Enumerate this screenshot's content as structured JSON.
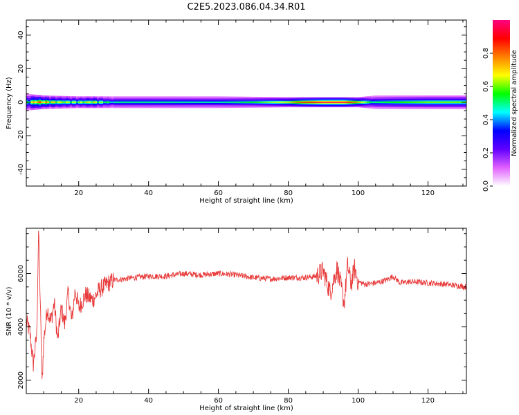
{
  "figure": {
    "title": "C2E5.2023.086.04.34.R01"
  },
  "chart_data": [
    {
      "type": "heatmap",
      "title": "",
      "xlabel": "Height of straight line (km)",
      "ylabel": "Frequency (Hz)",
      "xlim": [
        5,
        131
      ],
      "ylim": [
        -50,
        49
      ],
      "x_ticks": [
        20,
        40,
        60,
        80,
        100,
        120
      ],
      "y_ticks": [
        -40,
        -20,
        0,
        20,
        40
      ],
      "colorbar": {
        "label": "Normalized spectral amplitude",
        "range": [
          0,
          1
        ],
        "ticks": [
          0.0,
          0.2,
          0.4,
          0.6,
          0.8
        ],
        "colormap": [
          "#ffffff",
          "#e060ff",
          "#6000ff",
          "#0000ff",
          "#00ffff",
          "#00ff00",
          "#ffff00",
          "#ff8000",
          "#ff0000",
          "#ff0080"
        ]
      },
      "band": {
        "center_hz": 0,
        "half_width_hz": [
          [
            5,
            5
          ],
          [
            10,
            4
          ],
          [
            20,
            3.5
          ],
          [
            30,
            3.5
          ],
          [
            60,
            3.5
          ],
          [
            80,
            3
          ],
          [
            100,
            3
          ],
          [
            105,
            4
          ],
          [
            131,
            4
          ]
        ],
        "core_amplitude": [
          [
            5,
            0.55
          ],
          [
            8,
            0.85
          ],
          [
            12,
            0.75
          ],
          [
            15,
            0.7
          ],
          [
            20,
            0.65
          ],
          [
            24,
            0.75
          ],
          [
            30,
            0.5
          ],
          [
            40,
            0.5
          ],
          [
            60,
            0.48
          ],
          [
            70,
            0.55
          ],
          [
            80,
            0.7
          ],
          [
            84,
            0.85
          ],
          [
            90,
            0.95
          ],
          [
            96,
            0.95
          ],
          [
            100,
            0.75
          ],
          [
            104,
            0.5
          ],
          [
            110,
            0.55
          ],
          [
            120,
            0.6
          ],
          [
            131,
            0.6
          ]
        ]
      }
    },
    {
      "type": "line",
      "title": "",
      "xlabel": "Height of straight line (km)",
      "ylabel": "SNR (10 * v/v)",
      "xlim": [
        5,
        131
      ],
      "ylim": [
        1500,
        7700
      ],
      "x_ticks": [
        20,
        40,
        60,
        80,
        100,
        120
      ],
      "y_ticks": [
        2000,
        4000,
        6000
      ],
      "color": "#e83a3a",
      "series": [
        {
          "x": [
            5,
            6,
            7,
            8,
            8.5,
            9,
            9.5,
            10,
            11,
            12,
            13,
            14,
            15,
            16,
            17,
            18,
            19,
            20,
            22,
            24,
            26,
            28,
            30,
            33,
            36,
            40,
            45,
            50,
            55,
            60,
            65,
            70,
            75,
            80,
            85,
            88,
            90,
            92,
            94,
            96,
            97,
            98,
            99,
            100,
            102,
            105,
            108,
            110,
            112,
            115,
            120,
            125,
            131
          ],
          "y": [
            4200,
            3800,
            2600,
            3700,
            7600,
            5000,
            1800,
            3500,
            4700,
            4200,
            4900,
            3500,
            4700,
            4100,
            5300,
            4200,
            5400,
            4700,
            5200,
            5000,
            5400,
            5600,
            5750,
            5800,
            5850,
            5900,
            5900,
            6000,
            5950,
            6000,
            5950,
            5850,
            5800,
            5850,
            5850,
            5900,
            6100,
            5300,
            6200,
            4900,
            6300,
            5600,
            6200,
            5700,
            5600,
            5650,
            5750,
            5900,
            5650,
            5700,
            5650,
            5600,
            5500
          ]
        }
      ]
    }
  ]
}
